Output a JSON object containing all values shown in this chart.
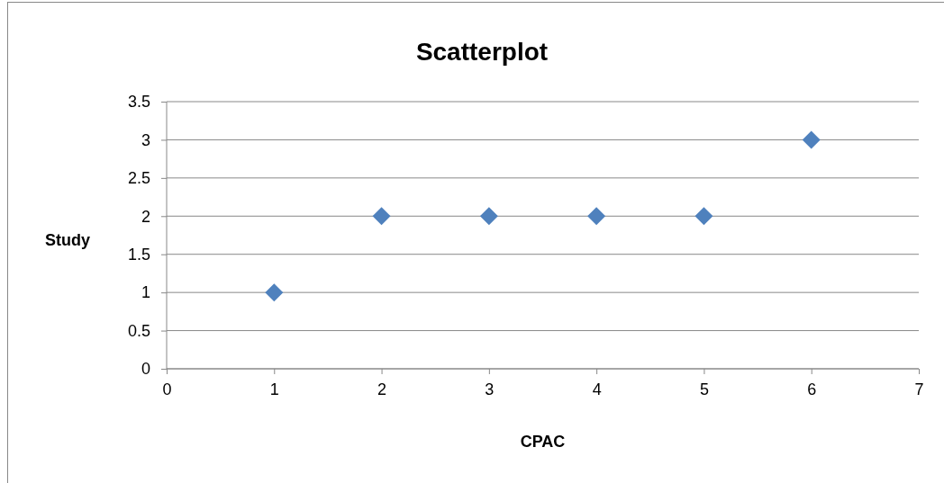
{
  "chart_data": {
    "type": "scatter",
    "title": "Scatterplot",
    "xlabel": "CPAC",
    "ylabel": "Study",
    "x": [
      1,
      2,
      3,
      4,
      5,
      6
    ],
    "series": [
      {
        "color": "#4f81bd",
        "values": [
          1,
          2,
          2,
          2,
          2,
          3
        ]
      }
    ],
    "xlim": [
      0,
      7
    ],
    "xticks": [
      0,
      1,
      2,
      3,
      4,
      5,
      6,
      7
    ],
    "ylim": [
      0,
      3.5
    ],
    "yticks": [
      0,
      0.5,
      1,
      1.5,
      2,
      2.5,
      3,
      3.5
    ],
    "grid": "y",
    "marker": "diamond"
  }
}
